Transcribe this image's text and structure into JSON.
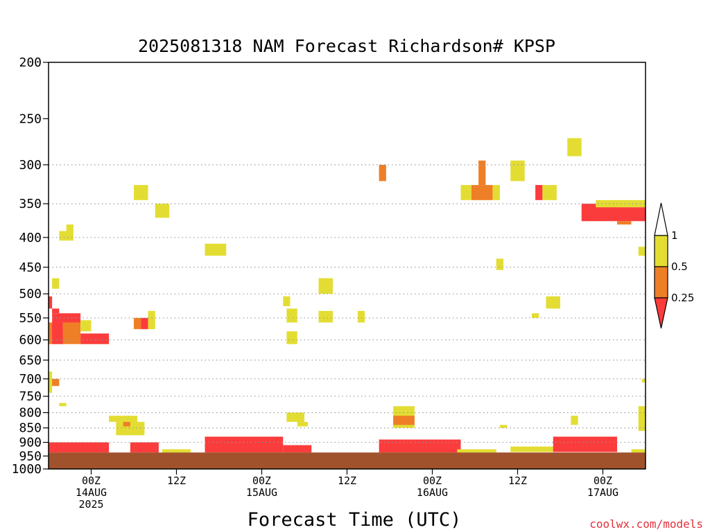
{
  "credit": "coolwx.com/models",
  "colors": {
    "yellow": "#e3dd33",
    "orange": "#ee7f27",
    "red": "#fb3c3c",
    "ground": "#a0522d",
    "grid": "#9a9a9a"
  },
  "chart_data": {
    "type": "heatmap",
    "title": "2025081318 NAM Forecast Richardson# KPSP",
    "xlabel": "Forecast Time (UTC)",
    "ylabel": "",
    "y_axis": {
      "scale": "log",
      "inverted": true,
      "units": "hPa",
      "range": [
        1000,
        200
      ],
      "ticks": [
        200,
        250,
        300,
        350,
        400,
        450,
        500,
        550,
        600,
        650,
        700,
        750,
        800,
        850,
        900,
        950,
        1000
      ],
      "gridlines": [
        300,
        350,
        400,
        450,
        500,
        550,
        600,
        650,
        700,
        750,
        800,
        850,
        900,
        950,
        1000
      ]
    },
    "x_axis": {
      "units": "forecast hour",
      "range": [
        0,
        84
      ],
      "ticks": [
        {
          "hour": 6,
          "lines": [
            "00Z",
            "14AUG",
            "2025"
          ]
        },
        {
          "hour": 18,
          "lines": [
            "12Z"
          ]
        },
        {
          "hour": 30,
          "lines": [
            "00Z",
            "15AUG"
          ]
        },
        {
          "hour": 42,
          "lines": [
            "12Z"
          ]
        },
        {
          "hour": 54,
          "lines": [
            "00Z",
            "16AUG"
          ]
        },
        {
          "hour": 66,
          "lines": [
            "12Z"
          ]
        },
        {
          "hour": 78,
          "lines": [
            "00Z",
            "17AUG"
          ]
        }
      ]
    },
    "colorbar": {
      "bins": [
        {
          "range": "< 0.25",
          "color": "#fb3c3c"
        },
        {
          "range": "0.25-0.5",
          "color": "#ee7f27"
        },
        {
          "range": "0.5-1",
          "color": "#e3dd33"
        },
        {
          "range": "> 1",
          "color": "#ffffff"
        }
      ],
      "labels": [
        "1",
        "0.5",
        "0.25"
      ]
    },
    "ground_level_hpa": [
      937,
      937,
      937,
      937,
      937,
      937,
      937,
      937,
      937,
      937,
      937,
      937,
      937,
      937,
      937,
      937,
      937,
      937,
      937,
      937,
      937,
      937,
      937,
      937,
      937,
      937,
      937,
      937,
      937,
      937,
      937,
      937,
      937,
      937,
      937,
      937,
      937,
      937,
      937,
      937,
      937,
      937,
      937,
      937,
      937,
      937,
      937,
      937,
      937,
      937,
      937,
      937,
      937,
      937,
      937,
      937,
      937,
      937,
      937,
      937,
      937,
      937,
      937,
      937,
      937,
      937,
      937,
      937,
      937,
      937,
      937,
      937,
      937,
      937,
      937,
      937,
      937,
      937,
      937,
      937,
      937,
      937,
      937,
      937,
      937
    ],
    "cells": [
      {
        "hour": [
          0.0,
          0.5
        ],
        "hpa": [
          505,
          530
        ],
        "value": "red"
      },
      {
        "hour": [
          0.0,
          0.5
        ],
        "hpa": [
          680,
          740
        ],
        "value": "yellow"
      },
      {
        "hour": [
          0.0,
          1.0
        ],
        "hpa": [
          560,
          610
        ],
        "value": "orange"
      },
      {
        "hour": [
          0.0,
          8.5
        ],
        "hpa": [
          900,
          937
        ],
        "value": "red"
      },
      {
        "hour": [
          0.5,
          1.5
        ],
        "hpa": [
          470,
          490
        ],
        "value": "yellow"
      },
      {
        "hour": [
          0.5,
          1.5
        ],
        "hpa": [
          530,
          540
        ],
        "value": "red"
      },
      {
        "hour": [
          0.5,
          1.5
        ],
        "hpa": [
          700,
          720
        ],
        "value": "orange"
      },
      {
        "hour": [
          0.5,
          4.5
        ],
        "hpa": [
          540,
          560
        ],
        "value": "red"
      },
      {
        "hour": [
          0.5,
          2.0
        ],
        "hpa": [
          560,
          610
        ],
        "value": "red"
      },
      {
        "hour": [
          1.5,
          3.5
        ],
        "hpa": [
          390,
          405
        ],
        "value": "yellow"
      },
      {
        "hour": [
          2.0,
          4.5
        ],
        "hpa": [
          560,
          610
        ],
        "value": "orange"
      },
      {
        "hour": [
          2.5,
          3.5
        ],
        "hpa": [
          380,
          390
        ],
        "value": "yellow"
      },
      {
        "hour": [
          1.5,
          2.5
        ],
        "hpa": [
          770,
          780
        ],
        "value": "yellow"
      },
      {
        "hour": [
          4.5,
          6.0
        ],
        "hpa": [
          555,
          580
        ],
        "value": "yellow"
      },
      {
        "hour": [
          4.5,
          8.5
        ],
        "hpa": [
          585,
          610
        ],
        "value": "red"
      },
      {
        "hour": [
          8.5,
          12.5
        ],
        "hpa": [
          810,
          830
        ],
        "value": "yellow"
      },
      {
        "hour": [
          9.5,
          13.5
        ],
        "hpa": [
          830,
          875
        ],
        "value": "yellow"
      },
      {
        "hour": [
          10.5,
          11.5
        ],
        "hpa": [
          830,
          845
        ],
        "value": "orange"
      },
      {
        "hour": [
          11.5,
          15.5
        ],
        "hpa": [
          900,
          937
        ],
        "value": "red"
      },
      {
        "hour": [
          12.0,
          14.0
        ],
        "hpa": [
          325,
          345
        ],
        "value": "yellow"
      },
      {
        "hour": [
          12.0,
          13.0
        ],
        "hpa": [
          550,
          575
        ],
        "value": "orange"
      },
      {
        "hour": [
          13.0,
          14.0
        ],
        "hpa": [
          550,
          575
        ],
        "value": "red"
      },
      {
        "hour": [
          14.0,
          15.0
        ],
        "hpa": [
          535,
          575
        ],
        "value": "yellow"
      },
      {
        "hour": [
          15.0,
          17.0
        ],
        "hpa": [
          350,
          370
        ],
        "value": "yellow"
      },
      {
        "hour": [
          16.0,
          20.0
        ],
        "hpa": [
          925,
          937
        ],
        "value": "yellow"
      },
      {
        "hour": [
          22.0,
          25.0
        ],
        "hpa": [
          410,
          430
        ],
        "value": "yellow"
      },
      {
        "hour": [
          22.0,
          33.0
        ],
        "hpa": [
          880,
          937
        ],
        "value": "red"
      },
      {
        "hour": [
          33.0,
          34.0
        ],
        "hpa": [
          505,
          525
        ],
        "value": "yellow"
      },
      {
        "hour": [
          33.5,
          35.0
        ],
        "hpa": [
          530,
          560
        ],
        "value": "yellow"
      },
      {
        "hour": [
          33.5,
          35.0
        ],
        "hpa": [
          580,
          610
        ],
        "value": "yellow"
      },
      {
        "hour": [
          33.5,
          36.0
        ],
        "hpa": [
          800,
          830
        ],
        "value": "yellow"
      },
      {
        "hour": [
          35.0,
          36.5
        ],
        "hpa": [
          830,
          845
        ],
        "value": "yellow"
      },
      {
        "hour": [
          33.0,
          37.0
        ],
        "hpa": [
          910,
          937
        ],
        "value": "red"
      },
      {
        "hour": [
          38.0,
          40.0
        ],
        "hpa": [
          470,
          500
        ],
        "value": "yellow"
      },
      {
        "hour": [
          38.0,
          40.0
        ],
        "hpa": [
          535,
          560
        ],
        "value": "yellow"
      },
      {
        "hour": [
          43.5,
          44.5
        ],
        "hpa": [
          535,
          560
        ],
        "value": "yellow"
      },
      {
        "hour": [
          46.5,
          47.5
        ],
        "hpa": [
          300,
          320
        ],
        "value": "orange"
      },
      {
        "hour": [
          46.5,
          58.0
        ],
        "hpa": [
          890,
          937
        ],
        "value": "red"
      },
      {
        "hour": [
          48.5,
          51.5
        ],
        "hpa": [
          780,
          850
        ],
        "value": "yellow"
      },
      {
        "hour": [
          48.5,
          51.5
        ],
        "hpa": [
          810,
          840
        ],
        "value": "orange"
      },
      {
        "hour": [
          57.5,
          63.0
        ],
        "hpa": [
          925,
          937
        ],
        "value": "yellow"
      },
      {
        "hour": [
          58.0,
          59.5
        ],
        "hpa": [
          325,
          345
        ],
        "value": "yellow"
      },
      {
        "hour": [
          59.5,
          62.5
        ],
        "hpa": [
          325,
          345
        ],
        "value": "orange"
      },
      {
        "hour": [
          60.5,
          61.5
        ],
        "hpa": [
          295,
          325
        ],
        "value": "orange"
      },
      {
        "hour": [
          62.5,
          63.5
        ],
        "hpa": [
          325,
          345
        ],
        "value": "yellow"
      },
      {
        "hour": [
          63.0,
          64.0
        ],
        "hpa": [
          435,
          455
        ],
        "value": "yellow"
      },
      {
        "hour": [
          63.5,
          64.5
        ],
        "hpa": [
          840,
          850
        ],
        "value": "yellow"
      },
      {
        "hour": [
          65.0,
          67.0
        ],
        "hpa": [
          295,
          320
        ],
        "value": "yellow"
      },
      {
        "hour": [
          65.0,
          72.0
        ],
        "hpa": [
          915,
          935
        ],
        "value": "yellow"
      },
      {
        "hour": [
          68.5,
          69.5
        ],
        "hpa": [
          325,
          345
        ],
        "value": "red"
      },
      {
        "hour": [
          69.5,
          71.5
        ],
        "hpa": [
          325,
          345
        ],
        "value": "yellow"
      },
      {
        "hour": [
          70.0,
          72.0
        ],
        "hpa": [
          505,
          530
        ],
        "value": "yellow"
      },
      {
        "hour": [
          68.0,
          69.0
        ],
        "hpa": [
          540,
          550
        ],
        "value": "yellow"
      },
      {
        "hour": [
          73.0,
          75.0
        ],
        "hpa": [
          270,
          290
        ],
        "value": "yellow"
      },
      {
        "hour": [
          73.5,
          74.5
        ],
        "hpa": [
          810,
          840
        ],
        "value": "yellow"
      },
      {
        "hour": [
          71.0,
          80.0
        ],
        "hpa": [
          880,
          935
        ],
        "value": "red"
      },
      {
        "hour": [
          75.0,
          80.0
        ],
        "hpa": [
          350,
          375
        ],
        "value": "red"
      },
      {
        "hour": [
          77.0,
          84.0
        ],
        "hpa": [
          345,
          355
        ],
        "value": "yellow"
      },
      {
        "hour": [
          80.0,
          84.0
        ],
        "hpa": [
          355,
          375
        ],
        "value": "red"
      },
      {
        "hour": [
          80.0,
          82.0
        ],
        "hpa": [
          375,
          380
        ],
        "value": "orange"
      },
      {
        "hour": [
          83.0,
          84.0
        ],
        "hpa": [
          415,
          430
        ],
        "value": "yellow"
      },
      {
        "hour": [
          83.0,
          84.0
        ],
        "hpa": [
          780,
          860
        ],
        "value": "yellow"
      },
      {
        "hour": [
          83.5,
          84.0
        ],
        "hpa": [
          700,
          710
        ],
        "value": "yellow"
      },
      {
        "hour": [
          82.0,
          84.0
        ],
        "hpa": [
          925,
          937
        ],
        "value": "yellow"
      }
    ]
  }
}
